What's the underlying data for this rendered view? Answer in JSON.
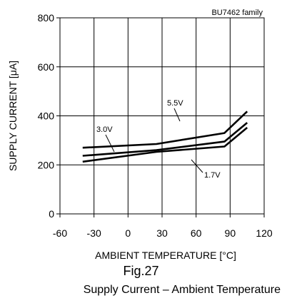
{
  "figure": {
    "number_label": "Fig.27",
    "caption": "Supply Current – Ambient Temperature"
  },
  "chart_data": {
    "type": "line",
    "note": "BU7462 family",
    "xlabel": "AMBIENT TEMPERATURE [°C]",
    "ylabel": "SUPPLY CURRENT [μA]",
    "xlim": [
      -60,
      120
    ],
    "ylim": [
      0,
      800
    ],
    "xticks": [
      -60,
      -30,
      0,
      30,
      60,
      90,
      120
    ],
    "yticks": [
      0,
      200,
      400,
      600,
      800
    ],
    "grid": true,
    "series": [
      {
        "name": "5.5V",
        "x": [
          -40,
          25,
          85,
          105
        ],
        "y": [
          270,
          285,
          330,
          418
        ]
      },
      {
        "name": "3.0V",
        "x": [
          -40,
          25,
          85,
          105
        ],
        "y": [
          237,
          260,
          295,
          372
        ]
      },
      {
        "name": "1.7V",
        "x": [
          -40,
          25,
          85,
          105
        ],
        "y": [
          213,
          253,
          275,
          352
        ]
      }
    ],
    "colors": {
      "line": "#000000",
      "grid": "#000000"
    }
  }
}
